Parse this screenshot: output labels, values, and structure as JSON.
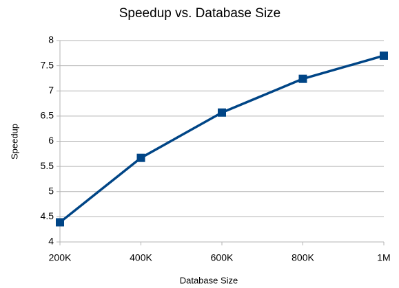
{
  "chart_data": {
    "type": "line",
    "title": "Speedup vs. Database Size",
    "x_label": "Database Size",
    "y_label": "Speedup",
    "categories": [
      "200K",
      "400K",
      "600K",
      "800K",
      "1M"
    ],
    "series": [
      {
        "name": "Speedup",
        "color": "#004586",
        "values": [
          4.39,
          5.67,
          6.57,
          7.24,
          7.7
        ]
      }
    ],
    "ylim": [
      4,
      8
    ],
    "yticks": [
      4,
      4.5,
      5,
      5.5,
      6,
      6.5,
      7,
      7.5,
      8
    ],
    "grid": true
  }
}
